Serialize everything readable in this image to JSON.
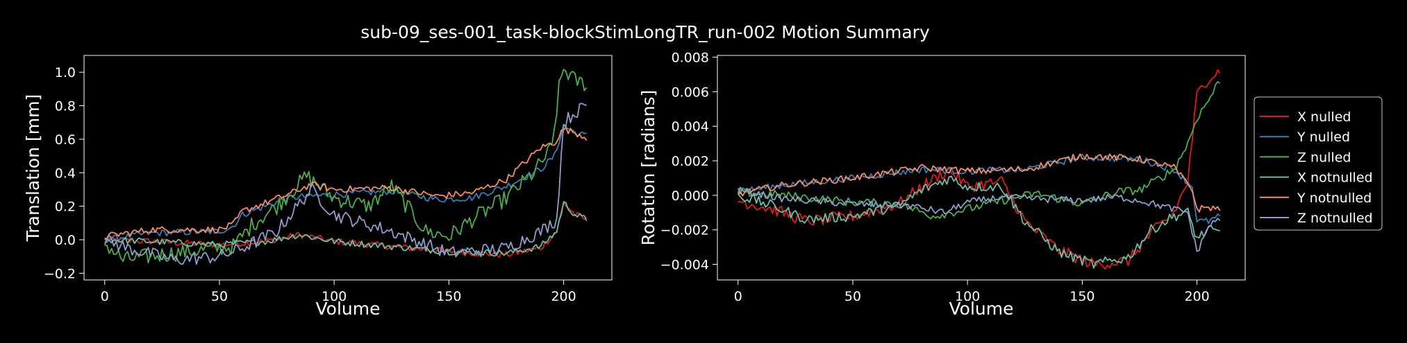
{
  "figure": {
    "title": "sub-09_ses-001_task-blockStimLongTR_run-002 Motion Summary"
  },
  "colors": {
    "background": "#000000",
    "foreground": "#ffffff",
    "x_nulled": "#e41a1c",
    "y_nulled": "#377eb8",
    "z_nulled": "#4daf4a",
    "x_notnulled": "#66c2a5",
    "y_notnulled": "#fc8d62",
    "z_notnulled": "#8da0cb"
  },
  "legend": {
    "placement": "right",
    "entries": [
      "X nulled",
      "Y nulled",
      "Z nulled",
      "X notnulled",
      "Y notnulled",
      "Z notnulled"
    ]
  },
  "chart_data": [
    {
      "type": "line",
      "name": "translation",
      "xlabel": "Volume",
      "ylabel": "Translation [mm]",
      "xlim": [
        -9,
        221
      ],
      "ylim": [
        -0.24,
        1.1
      ],
      "xticks": [
        0,
        50,
        100,
        150,
        200
      ],
      "yticks": [
        -0.2,
        0.0,
        0.2,
        0.4,
        0.6,
        0.8,
        1.0
      ],
      "ytick_labels": [
        "−0.2",
        "0.0",
        "0.2",
        "0.4",
        "0.6",
        "0.8",
        "1.0"
      ],
      "grid": false,
      "series": [
        {
          "name": "X nulled",
          "color_key": "x_nulled",
          "points": [
            [
              0,
              0.0
            ],
            [
              20,
              -0.01
            ],
            [
              50,
              -0.03
            ],
            [
              70,
              -0.01
            ],
            [
              85,
              0.03
            ],
            [
              100,
              -0.01
            ],
            [
              125,
              -0.04
            ],
            [
              150,
              -0.07
            ],
            [
              175,
              -0.09
            ],
            [
              190,
              -0.05
            ],
            [
              197,
              0.05
            ],
            [
              200,
              0.22
            ],
            [
              205,
              0.15
            ],
            [
              210,
              0.12
            ]
          ],
          "noise": 0.02
        },
        {
          "name": "Y nulled",
          "color_key": "y_nulled",
          "points": [
            [
              0,
              0.0
            ],
            [
              20,
              0.04
            ],
            [
              50,
              0.05
            ],
            [
              56,
              0.08
            ],
            [
              60,
              0.15
            ],
            [
              80,
              0.25
            ],
            [
              100,
              0.27
            ],
            [
              125,
              0.29
            ],
            [
              145,
              0.24
            ],
            [
              160,
              0.25
            ],
            [
              175,
              0.32
            ],
            [
              190,
              0.42
            ],
            [
              196,
              0.5
            ],
            [
              200,
              0.68
            ],
            [
              205,
              0.64
            ],
            [
              210,
              0.62
            ]
          ],
          "noise": 0.02
        },
        {
          "name": "Z nulled",
          "color_key": "z_nulled",
          "points": [
            [
              0,
              -0.02
            ],
            [
              8,
              -0.12
            ],
            [
              30,
              -0.08
            ],
            [
              56,
              -0.04
            ],
            [
              65,
              0.1
            ],
            [
              75,
              0.2
            ],
            [
              88,
              0.38
            ],
            [
              100,
              0.25
            ],
            [
              115,
              0.2
            ],
            [
              125,
              0.32
            ],
            [
              140,
              0.05
            ],
            [
              150,
              0.02
            ],
            [
              160,
              0.12
            ],
            [
              175,
              0.25
            ],
            [
              187,
              0.4
            ],
            [
              195,
              0.55
            ],
            [
              198,
              0.9
            ],
            [
              200,
              1.02
            ],
            [
              205,
              0.95
            ],
            [
              210,
              0.93
            ]
          ],
          "noise": 0.05
        },
        {
          "name": "X notnulled",
          "color_key": "x_notnulled",
          "points": [
            [
              0,
              0.0
            ],
            [
              20,
              -0.01
            ],
            [
              50,
              -0.03
            ],
            [
              70,
              -0.01
            ],
            [
              85,
              0.03
            ],
            [
              100,
              -0.01
            ],
            [
              125,
              -0.04
            ],
            [
              150,
              -0.07
            ],
            [
              175,
              -0.08
            ],
            [
              190,
              -0.04
            ],
            [
              197,
              0.05
            ],
            [
              200,
              0.22
            ],
            [
              205,
              0.15
            ],
            [
              210,
              0.12
            ]
          ],
          "noise": 0.02
        },
        {
          "name": "Y notnulled",
          "color_key": "y_notnulled",
          "points": [
            [
              0,
              0.02
            ],
            [
              20,
              0.06
            ],
            [
              50,
              0.06
            ],
            [
              56,
              0.09
            ],
            [
              60,
              0.17
            ],
            [
              80,
              0.27
            ],
            [
              90,
              0.33
            ],
            [
              100,
              0.3
            ],
            [
              125,
              0.31
            ],
            [
              145,
              0.26
            ],
            [
              160,
              0.28
            ],
            [
              175,
              0.36
            ],
            [
              190,
              0.55
            ],
            [
              196,
              0.58
            ],
            [
              200,
              0.66
            ],
            [
              205,
              0.64
            ],
            [
              210,
              0.61
            ]
          ],
          "noise": 0.02
        },
        {
          "name": "Z notnulled",
          "color_key": "z_notnulled",
          "points": [
            [
              0,
              0.0
            ],
            [
              10,
              -0.05
            ],
            [
              30,
              -0.12
            ],
            [
              50,
              -0.1
            ],
            [
              60,
              -0.05
            ],
            [
              75,
              0.05
            ],
            [
              90,
              0.3
            ],
            [
              100,
              0.15
            ],
            [
              125,
              0.05
            ],
            [
              150,
              -0.08
            ],
            [
              175,
              -0.05
            ],
            [
              190,
              0.05
            ],
            [
              197,
              0.12
            ],
            [
              200,
              0.7
            ],
            [
              205,
              0.76
            ],
            [
              210,
              0.8
            ]
          ],
          "noise": 0.04
        }
      ]
    },
    {
      "type": "line",
      "name": "rotation",
      "xlabel": "Volume",
      "ylabel": "Rotation [radians]",
      "xlim": [
        -9,
        221
      ],
      "ylim": [
        -0.0049,
        0.0081
      ],
      "xticks": [
        0,
        50,
        100,
        150,
        200
      ],
      "yticks": [
        -0.004,
        -0.002,
        0.0,
        0.002,
        0.004,
        0.006,
        0.008
      ],
      "ytick_labels": [
        "−0.004",
        "−0.002",
        "0.000",
        "0.002",
        "0.004",
        "0.006",
        "0.008"
      ],
      "grid": false,
      "series": [
        {
          "name": "X nulled",
          "color_key": "x_nulled",
          "points": [
            [
              0,
              -0.0003
            ],
            [
              15,
              -0.0008
            ],
            [
              30,
              -0.0015
            ],
            [
              50,
              -0.0012
            ],
            [
              70,
              -0.0005
            ],
            [
              80,
              0.0005
            ],
            [
              92,
              0.0015
            ],
            [
              100,
              0.0005
            ],
            [
              115,
              0.0008
            ],
            [
              125,
              -0.0015
            ],
            [
              140,
              -0.0032
            ],
            [
              155,
              -0.004
            ],
            [
              170,
              -0.0038
            ],
            [
              180,
              -0.0022
            ],
            [
              190,
              -0.001
            ],
            [
              196,
              0.0008
            ],
            [
              200,
              0.0058
            ],
            [
              205,
              0.0068
            ],
            [
              210,
              0.0072
            ]
          ],
          "noise": 0.00035
        },
        {
          "name": "Y nulled",
          "color_key": "y_nulled",
          "points": [
            [
              0,
              0.0002
            ],
            [
              20,
              0.0006
            ],
            [
              50,
              0.001
            ],
            [
              80,
              0.0015
            ],
            [
              100,
              0.0014
            ],
            [
              125,
              0.0015
            ],
            [
              150,
              0.0022
            ],
            [
              175,
              0.0021
            ],
            [
              190,
              0.0015
            ],
            [
              198,
              0.0005
            ],
            [
              200,
              -0.0015
            ],
            [
              205,
              -0.0015
            ],
            [
              210,
              -0.0012
            ]
          ],
          "noise": 0.0002
        },
        {
          "name": "Z nulled",
          "color_key": "z_nulled",
          "points": [
            [
              0,
              0.0002
            ],
            [
              20,
              0.0
            ],
            [
              50,
              -0.0004
            ],
            [
              70,
              -0.0005
            ],
            [
              85,
              -0.0012
            ],
            [
              100,
              -0.0008
            ],
            [
              115,
              -0.0003
            ],
            [
              130,
              0.0001
            ],
            [
              150,
              -0.0005
            ],
            [
              165,
              0.0002
            ],
            [
              175,
              0.0003
            ],
            [
              190,
              0.0015
            ],
            [
              196,
              0.003
            ],
            [
              200,
              0.0045
            ],
            [
              205,
              0.0055
            ],
            [
              210,
              0.0067
            ]
          ],
          "noise": 0.00025
        },
        {
          "name": "X notnulled",
          "color_key": "x_notnulled",
          "points": [
            [
              0,
              0.0
            ],
            [
              15,
              -0.0006
            ],
            [
              30,
              -0.0014
            ],
            [
              50,
              -0.0012
            ],
            [
              70,
              -0.0006
            ],
            [
              80,
              0.0003
            ],
            [
              92,
              0.001
            ],
            [
              100,
              0.0005
            ],
            [
              115,
              0.0005
            ],
            [
              125,
              -0.0015
            ],
            [
              140,
              -0.0033
            ],
            [
              155,
              -0.004
            ],
            [
              170,
              -0.0036
            ],
            [
              180,
              -0.002
            ],
            [
              190,
              -0.0012
            ],
            [
              196,
              -0.001
            ],
            [
              200,
              -0.0025
            ],
            [
              205,
              -0.002
            ],
            [
              210,
              -0.0022
            ]
          ],
          "noise": 0.0003
        },
        {
          "name": "Y notnulled",
          "color_key": "y_notnulled",
          "points": [
            [
              0,
              0.0001
            ],
            [
              20,
              0.0006
            ],
            [
              50,
              0.001
            ],
            [
              80,
              0.0016
            ],
            [
              100,
              0.0014
            ],
            [
              125,
              0.0015
            ],
            [
              150,
              0.0023
            ],
            [
              175,
              0.0021
            ],
            [
              190,
              0.0016
            ],
            [
              198,
              0.0003
            ],
            [
              200,
              -0.0008
            ],
            [
              205,
              -0.0007
            ],
            [
              210,
              -0.0008
            ]
          ],
          "noise": 0.0002
        },
        {
          "name": "Z notnulled",
          "color_key": "z_notnulled",
          "points": [
            [
              0,
              0.0003
            ],
            [
              20,
              -0.0002
            ],
            [
              50,
              -0.0005
            ],
            [
              75,
              -0.0006
            ],
            [
              90,
              -0.001
            ],
            [
              100,
              -0.0004
            ],
            [
              115,
              -0.0001
            ],
            [
              130,
              -0.0002
            ],
            [
              150,
              -0.0003
            ],
            [
              165,
              -0.0001
            ],
            [
              175,
              -0.0003
            ],
            [
              190,
              -0.0008
            ],
            [
              196,
              -0.001
            ],
            [
              200,
              -0.0033
            ],
            [
              205,
              -0.0018
            ],
            [
              210,
              -0.0013
            ]
          ],
          "noise": 0.0002
        }
      ]
    }
  ]
}
